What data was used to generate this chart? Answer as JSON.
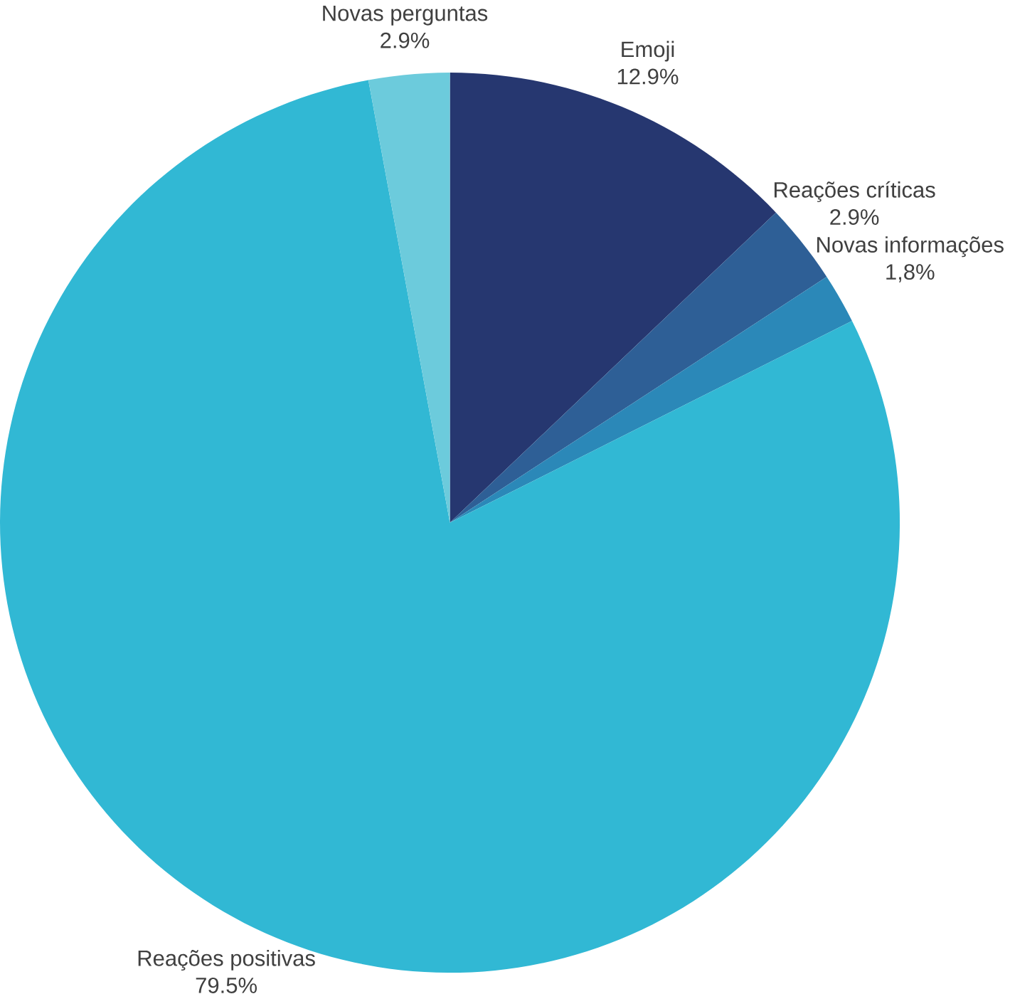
{
  "chart_data": {
    "type": "pie",
    "categories": [
      "Emoji",
      "Reações críticas",
      "Novas informações",
      "Reações positivas",
      "Novas perguntas"
    ],
    "values": [
      12.9,
      2.9,
      1.8,
      79.5,
      2.9
    ],
    "value_labels": [
      "12.9%",
      "2.9%",
      "1,8%",
      "79.5%",
      "2.9%"
    ],
    "colors": [
      "#263770",
      "#2e5f96",
      "#2b88b8",
      "#31b8d4",
      "#6ccbdc"
    ]
  }
}
